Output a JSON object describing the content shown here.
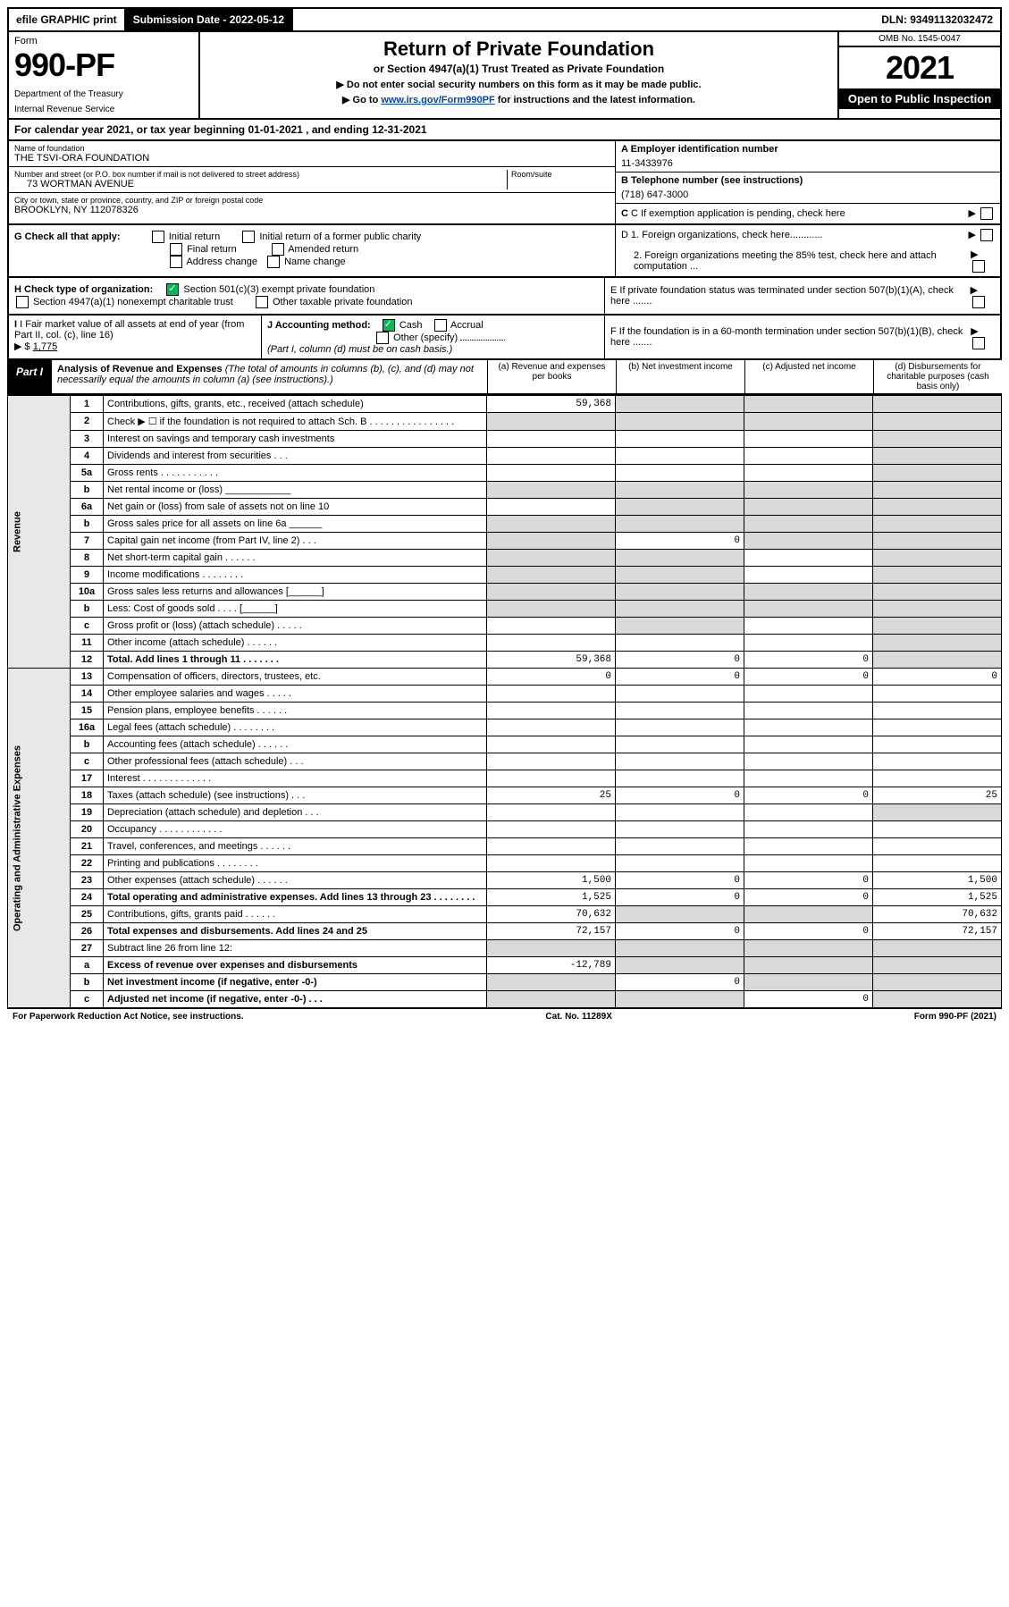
{
  "topbar": {
    "efile": "efile GRAPHIC print",
    "submission_label": "Submission Date - 2022-05-12",
    "dln": "DLN: 93491132032472"
  },
  "header": {
    "form_label": "Form",
    "form_number": "990-PF",
    "dept1": "Department of the Treasury",
    "dept2": "Internal Revenue Service",
    "title": "Return of Private Foundation",
    "subtitle": "or Section 4947(a)(1) Trust Treated as Private Foundation",
    "note1": "▶ Do not enter social security numbers on this form as it may be made public.",
    "note2_pre": "▶ Go to ",
    "note2_link": "www.irs.gov/Form990PF",
    "note2_post": " for instructions and the latest information.",
    "omb": "OMB No. 1545-0047",
    "year": "2021",
    "open": "Open to Public Inspection"
  },
  "calendar": {
    "text_pre": "For calendar year 2021, or tax year beginning ",
    "begin": "01-01-2021",
    "text_mid": " , and ending ",
    "end": "12-31-2021"
  },
  "id": {
    "name_label": "Name of foundation",
    "name": "THE TSVI-ORA FOUNDATION",
    "addr_label": "Number and street (or P.O. box number if mail is not delivered to street address)",
    "addr": "73 WORTMAN AVENUE",
    "room_label": "Room/suite",
    "city_label": "City or town, state or province, country, and ZIP or foreign postal code",
    "city": "BROOKLYN, NY  112078326",
    "a_label": "A Employer identification number",
    "a_val": "11-3433976",
    "b_label": "B Telephone number (see instructions)",
    "b_val": "(718) 647-3000",
    "c_label": "C If exemption application is pending, check here"
  },
  "g": {
    "label": "G Check all that apply:",
    "opts": [
      "Initial return",
      "Initial return of a former public charity",
      "Final return",
      "Amended return",
      "Address change",
      "Name change"
    ]
  },
  "h": {
    "label": "H Check type of organization:",
    "o1": "Section 501(c)(3) exempt private foundation",
    "o2": "Section 4947(a)(1) nonexempt charitable trust",
    "o3": "Other taxable private foundation"
  },
  "i": {
    "label": "I Fair market value of all assets at end of year (from Part II, col. (c), line 16)",
    "arrow": "▶ $",
    "val": "1,775"
  },
  "j": {
    "label": "J Accounting method:",
    "cash": "Cash",
    "accrual": "Accrual",
    "other": "Other (specify)",
    "note": "(Part I, column (d) must be on cash basis.)"
  },
  "d": {
    "d1": "D 1. Foreign organizations, check here............",
    "d2": "2. Foreign organizations meeting the 85% test, check here and attach computation ..."
  },
  "e": {
    "label": "E  If private foundation status was terminated under section 507(b)(1)(A), check here ......."
  },
  "f": {
    "label": "F  If the foundation is in a 60-month termination under section 507(b)(1)(B), check here ......."
  },
  "part1": {
    "tab": "Part I",
    "title": "Analysis of Revenue and Expenses",
    "note": " (The total of amounts in columns (b), (c), and (d) may not necessarily equal the amounts in column (a) (see instructions).)"
  },
  "cols": {
    "a": "(a)  Revenue and expenses per books",
    "b": "(b)  Net investment income",
    "c": "(c)  Adjusted net income",
    "d": "(d)  Disbursements for charitable purposes (cash basis only)"
  },
  "revenue_label": "Revenue",
  "expenses_label": "Operating and Administrative Expenses",
  "rows": [
    {
      "n": "1",
      "d": "Contributions, gifts, grants, etc., received (attach schedule)",
      "a": "59,368",
      "b": "",
      "c": "",
      "ds": "",
      "sb": true,
      "sc": true,
      "sd": true
    },
    {
      "n": "2",
      "d": "Check ▶ ☐ if the foundation is not required to attach Sch. B    .  .  .  .  .  .  .  .  .  .  .  .  .  .  .  .",
      "a": "",
      "b": "",
      "c": "",
      "ds": "",
      "sa": true,
      "sb": true,
      "sc": true,
      "sd": true
    },
    {
      "n": "3",
      "d": "Interest on savings and temporary cash investments",
      "a": "",
      "b": "",
      "c": "",
      "ds": "",
      "sd": true
    },
    {
      "n": "4",
      "d": "Dividends and interest from securities    .   .   .",
      "a": "",
      "b": "",
      "c": "",
      "ds": "",
      "sd": true
    },
    {
      "n": "5a",
      "d": "Gross rents    .   .   .   .   .   .   .   .   .   .   .",
      "a": "",
      "b": "",
      "c": "",
      "ds": "",
      "sd": true
    },
    {
      "n": "b",
      "d": "Net rental income or (loss)  ____________",
      "a": "",
      "b": "",
      "c": "",
      "ds": "",
      "sa": true,
      "sb": true,
      "sc": true,
      "sd": true
    },
    {
      "n": "6a",
      "d": "Net gain or (loss) from sale of assets not on line 10",
      "a": "",
      "b": "",
      "c": "",
      "ds": "",
      "sb": true,
      "sc": true,
      "sd": true
    },
    {
      "n": "b",
      "d": "Gross sales price for all assets on line 6a ______",
      "a": "",
      "b": "",
      "c": "",
      "ds": "",
      "sa": true,
      "sb": true,
      "sc": true,
      "sd": true
    },
    {
      "n": "7",
      "d": "Capital gain net income (from Part IV, line 2)   .   .   .",
      "a": "",
      "b": "0",
      "c": "",
      "ds": "",
      "sa": true,
      "sc": true,
      "sd": true
    },
    {
      "n": "8",
      "d": "Net short-term capital gain   .   .   .   .   .   .",
      "a": "",
      "b": "",
      "c": "",
      "ds": "",
      "sa": true,
      "sb": true,
      "sd": true
    },
    {
      "n": "9",
      "d": "Income modifications   .   .   .   .   .   .   .   .",
      "a": "",
      "b": "",
      "c": "",
      "ds": "",
      "sa": true,
      "sb": true,
      "sd": true
    },
    {
      "n": "10a",
      "d": "Gross sales less returns and allowances  [______]",
      "a": "",
      "b": "",
      "c": "",
      "ds": "",
      "sa": true,
      "sb": true,
      "sc": true,
      "sd": true
    },
    {
      "n": "b",
      "d": "Less: Cost of goods sold    .   .   .   .   [______]",
      "a": "",
      "b": "",
      "c": "",
      "ds": "",
      "sa": true,
      "sb": true,
      "sc": true,
      "sd": true
    },
    {
      "n": "c",
      "d": "Gross profit or (loss) (attach schedule)   .   .   .   .   .",
      "a": "",
      "b": "",
      "c": "",
      "ds": "",
      "sb": true,
      "sd": true
    },
    {
      "n": "11",
      "d": "Other income (attach schedule)   .   .   .   .   .   .",
      "a": "",
      "b": "",
      "c": "",
      "ds": "",
      "sd": true
    },
    {
      "n": "12",
      "d": "Total. Add lines 1 through 11   .   .   .   .   .   .   .",
      "a": "59,368",
      "b": "0",
      "c": "0",
      "ds": "",
      "bold": true,
      "sd": true
    },
    {
      "n": "13",
      "d": "Compensation of officers, directors, trustees, etc.",
      "a": "0",
      "b": "0",
      "c": "0",
      "ds": "0"
    },
    {
      "n": "14",
      "d": "Other employee salaries and wages   .   .   .   .   .",
      "a": "",
      "b": "",
      "c": "",
      "ds": ""
    },
    {
      "n": "15",
      "d": "Pension plans, employee benefits   .   .   .   .   .   .",
      "a": "",
      "b": "",
      "c": "",
      "ds": ""
    },
    {
      "n": "16a",
      "d": "Legal fees (attach schedule)   .   .   .   .   .   .   .   .",
      "a": "",
      "b": "",
      "c": "",
      "ds": ""
    },
    {
      "n": "b",
      "d": "Accounting fees (attach schedule)   .   .   .   .   .   .",
      "a": "",
      "b": "",
      "c": "",
      "ds": ""
    },
    {
      "n": "c",
      "d": "Other professional fees (attach schedule)   .   .   .",
      "a": "",
      "b": "",
      "c": "",
      "ds": ""
    },
    {
      "n": "17",
      "d": "Interest   .   .   .   .   .   .   .   .   .   .   .   .   .",
      "a": "",
      "b": "",
      "c": "",
      "ds": ""
    },
    {
      "n": "18",
      "d": "Taxes (attach schedule) (see instructions)   .   .   .",
      "a": "25",
      "b": "0",
      "c": "0",
      "ds": "25"
    },
    {
      "n": "19",
      "d": "Depreciation (attach schedule) and depletion   .   .   .",
      "a": "",
      "b": "",
      "c": "",
      "ds": "",
      "sd": true
    },
    {
      "n": "20",
      "d": "Occupancy   .   .   .   .   .   .   .   .   .   .   .   .",
      "a": "",
      "b": "",
      "c": "",
      "ds": ""
    },
    {
      "n": "21",
      "d": "Travel, conferences, and meetings   .   .   .   .   .   .",
      "a": "",
      "b": "",
      "c": "",
      "ds": ""
    },
    {
      "n": "22",
      "d": "Printing and publications   .   .   .   .   .   .   .   .",
      "a": "",
      "b": "",
      "c": "",
      "ds": ""
    },
    {
      "n": "23",
      "d": "Other expenses (attach schedule)   .   .   .   .   .   .",
      "a": "1,500",
      "b": "0",
      "c": "0",
      "ds": "1,500"
    },
    {
      "n": "24",
      "d": "Total operating and administrative expenses. Add lines 13 through 23   .   .   .   .   .   .   .   .",
      "a": "1,525",
      "b": "0",
      "c": "0",
      "ds": "1,525",
      "bold": true
    },
    {
      "n": "25",
      "d": "Contributions, gifts, grants paid   .   .   .   .   .   .",
      "a": "70,632",
      "b": "",
      "c": "",
      "ds": "70,632",
      "sb": true,
      "sc": true
    },
    {
      "n": "26",
      "d": "Total expenses and disbursements. Add lines 24 and 25",
      "a": "72,157",
      "b": "0",
      "c": "0",
      "ds": "72,157",
      "bold": true
    },
    {
      "n": "27",
      "d": "Subtract line 26 from line 12:",
      "a": "",
      "b": "",
      "c": "",
      "ds": "",
      "sa": true,
      "sb": true,
      "sc": true,
      "sd": true
    },
    {
      "n": "a",
      "d": "Excess of revenue over expenses and disbursements",
      "a": "-12,789",
      "b": "",
      "c": "",
      "ds": "",
      "bold": true,
      "sb": true,
      "sc": true,
      "sd": true
    },
    {
      "n": "b",
      "d": "Net investment income (if negative, enter -0-)",
      "a": "",
      "b": "0",
      "c": "",
      "ds": "",
      "bold": true,
      "sa": true,
      "sc": true,
      "sd": true
    },
    {
      "n": "c",
      "d": "Adjusted net income (if negative, enter -0-)   .   .   .",
      "a": "",
      "b": "",
      "c": "0",
      "ds": "",
      "bold": true,
      "sa": true,
      "sb": true,
      "sd": true
    }
  ],
  "footer": {
    "left": "For Paperwork Reduction Act Notice, see instructions.",
    "mid": "Cat. No. 11289X",
    "right": "Form 990-PF (2021)"
  }
}
